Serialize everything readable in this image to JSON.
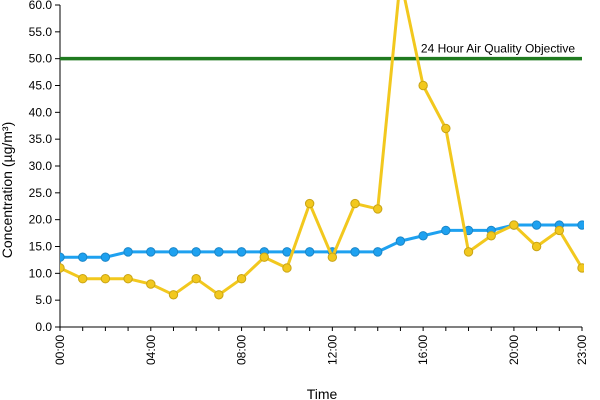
{
  "chart_data": {
    "type": "line",
    "xlabel": "Time",
    "ylabel": "Concentration (µg/m³)",
    "ylim": [
      0,
      60
    ],
    "y_tick_labels": [
      "0.0",
      "5.0",
      "10.0",
      "15.0",
      "20.0",
      "25.0",
      "30.0",
      "35.0",
      "40.0",
      "45.0",
      "50.0",
      "55.0",
      "60.0"
    ],
    "x_tick_labels": [
      "00:00",
      "04:00",
      "08:00",
      "12:00",
      "16:00",
      "20:00",
      "23:00"
    ],
    "x_tick_hours": [
      0,
      4,
      8,
      12,
      16,
      20,
      23
    ],
    "hours": [
      0,
      1,
      2,
      3,
      4,
      5,
      6,
      7,
      8,
      9,
      10,
      11,
      12,
      13,
      14,
      15,
      16,
      17,
      18,
      19,
      20,
      21,
      22,
      23
    ],
    "grid": false,
    "reference_line": {
      "value": 50,
      "label": "24 Hour Air Quality Objective",
      "color": "#1f7a1f"
    },
    "series": [
      {
        "color": "#1ea1f0",
        "values": [
          13,
          13,
          13,
          14,
          14,
          14,
          14,
          14,
          14,
          14,
          14,
          14,
          14,
          14,
          14,
          16,
          17,
          18,
          18,
          18,
          19,
          19,
          19,
          19
        ]
      },
      {
        "color": "#f2c81e",
        "values": [
          11,
          9,
          9,
          9,
          8,
          6,
          9,
          6,
          9,
          13,
          11,
          23,
          13,
          23,
          22,
          65,
          45,
          37,
          14,
          17,
          19,
          15,
          18,
          11
        ]
      }
    ]
  }
}
